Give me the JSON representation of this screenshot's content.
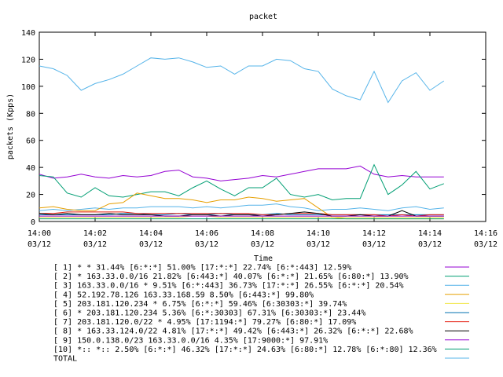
{
  "chart_data": {
    "type": "line",
    "title": "packet",
    "xlabel": "Time",
    "ylabel": "packets (Kpps)",
    "ylim": [
      0,
      140
    ],
    "xlim": [
      0,
      16
    ],
    "grid": false,
    "legend_position": "bottom",
    "y_ticks": [
      "0",
      "20",
      "40",
      "60",
      "80",
      "100",
      "120",
      "140"
    ],
    "x_ticks": [
      {
        "x": 0,
        "time": "14:00",
        "date": "03/12"
      },
      {
        "x": 2,
        "time": "14:02",
        "date": "03/12"
      },
      {
        "x": 4,
        "time": "14:04",
        "date": "03/12"
      },
      {
        "x": 6,
        "time": "14:06",
        "date": "03/12"
      },
      {
        "x": 8,
        "time": "14:08",
        "date": "03/12"
      },
      {
        "x": 10,
        "time": "14:10",
        "date": "03/12"
      },
      {
        "x": 12,
        "time": "14:12",
        "date": "03/12"
      },
      {
        "x": 14,
        "time": "14:14",
        "date": "03/12"
      },
      {
        "x": 16,
        "time": "14:16",
        "date": "03/12"
      }
    ],
    "x": [
      0,
      0.5,
      1,
      1.5,
      2,
      2.5,
      3,
      3.5,
      4,
      4.5,
      5,
      5.5,
      6,
      6.5,
      7,
      7.5,
      8,
      8.5,
      9,
      9.5,
      10,
      10.5,
      11,
      11.5,
      12,
      12.5,
      13,
      13.5,
      14,
      14.5
    ],
    "series": [
      {
        "name": "[ 1] * * 31.44%  [6:*:*] 51.00% [17:*:*] 22.74% [6:*:443] 12.59%",
        "color": "#9400d3",
        "values": [
          35,
          32,
          33,
          35,
          33,
          32,
          34,
          33,
          34,
          37,
          38,
          33,
          32,
          30,
          31,
          32,
          34,
          33,
          35,
          37,
          39,
          39,
          39,
          41,
          35,
          33,
          34,
          33,
          33,
          33
        ]
      },
      {
        "name": "[ 2] * 163.33.0.0/16 21.82%  [6:443:*] 40.07% [6:*:*] 21.65% [6:80:*] 13.90%",
        "color": "#009e73",
        "values": [
          34,
          33,
          21,
          18,
          25,
          19,
          18,
          20,
          22,
          22,
          19,
          25,
          30,
          24,
          19,
          25,
          25,
          32,
          20,
          18,
          20,
          16,
          17,
          17,
          42,
          20,
          27,
          37,
          24,
          28
        ]
      },
      {
        "name": "[ 3] 163.33.0.0/16 * 9.51%  [6:*:443] 36.73% [17:*:*] 26.55% [6:*:*] 20.54%",
        "color": "#56b4e9",
        "values": [
          8,
          9,
          8,
          9,
          10,
          9,
          10,
          10,
          11,
          11,
          11,
          10,
          11,
          10,
          11,
          12,
          12,
          13,
          11,
          10,
          8,
          9,
          9,
          10,
          9,
          8,
          10,
          11,
          9,
          10
        ]
      },
      {
        "name": "[ 4] 52.192.78.126 163.33.168.59 8.50%  [6:443:*] 99.80%",
        "color": "#e69f00",
        "values": [
          10,
          11,
          9,
          8,
          8,
          13,
          14,
          21,
          19,
          17,
          17,
          16,
          14,
          16,
          16,
          18,
          17,
          15,
          16,
          17,
          10,
          3,
          2,
          2,
          2,
          2,
          2,
          2,
          2,
          2
        ]
      },
      {
        "name": "[ 5] 203.181.120.234 * 6.75%  [6:*:*] 59.46% [6:30303:*] 39.74%",
        "color": "#f0e442",
        "values": [
          3,
          3,
          3,
          3,
          3,
          3,
          3,
          3,
          3,
          3,
          3,
          4,
          4,
          3,
          3,
          3,
          3,
          3,
          3,
          3,
          3,
          3,
          3,
          3,
          3,
          3,
          3,
          3,
          3,
          3
        ]
      },
      {
        "name": "[ 6] * 203.181.120.234 5.36%  [6:*:30303] 67.31% [6:30303:*] 23.44%",
        "color": "#0072b2",
        "values": [
          5,
          5,
          5,
          5,
          5,
          5,
          6,
          6,
          5,
          5,
          6,
          5,
          5,
          6,
          5,
          5,
          5,
          6,
          5,
          5,
          5,
          5,
          5,
          5,
          5,
          5,
          5,
          5,
          5,
          5
        ]
      },
      {
        "name": "[ 7] 203.181.120.0/22 * 4.95%  [17:1194:*] 79.27% [6:80:*] 17.09%",
        "color": "#e51e10",
        "values": [
          6,
          6,
          7,
          7,
          7,
          7,
          7,
          6,
          6,
          6,
          6,
          6,
          6,
          6,
          6,
          6,
          5,
          5,
          6,
          6,
          6,
          5,
          5,
          5,
          5,
          4,
          5,
          4,
          5,
          5
        ]
      },
      {
        "name": "[ 8] * 163.33.124.0/22 4.81%  [17:*:*] 49.42% [6:443:*] 26.32% [6:*:*] 22.68%",
        "color": "#000000",
        "values": [
          6,
          5,
          6,
          5,
          5,
          6,
          5,
          5,
          5,
          4,
          4,
          5,
          5,
          4,
          5,
          5,
          4,
          5,
          6,
          7,
          6,
          4,
          4,
          5,
          4,
          4,
          8,
          4,
          4,
          4
        ]
      },
      {
        "name": "[ 9] 150.0.138.0/23 163.33.0.0/16 4.35%  [17:9000:*] 97.91%",
        "color": "#9400d3",
        "values": [
          4,
          4,
          4,
          4,
          4,
          4,
          4,
          4,
          4,
          4,
          4,
          4,
          4,
          4,
          4,
          4,
          4,
          4,
          4,
          4,
          4,
          4,
          4,
          4,
          4,
          4,
          4,
          4,
          4,
          4
        ]
      },
      {
        "name": "[10] *:: *:: 2.50%  [6:*:*] 46.32% [17:*:*] 24.63% [6:80:*] 12.78% [6:*:80] 12.36%",
        "color": "#009e73",
        "values": [
          2,
          2,
          2,
          2,
          2,
          2,
          2,
          2,
          2,
          2,
          2,
          2,
          2,
          2,
          2,
          2,
          2,
          2,
          2,
          2,
          2,
          2,
          2,
          2,
          2,
          2,
          2,
          2,
          2,
          2
        ]
      },
      {
        "name": "TOTAL",
        "color": "#56b4e9",
        "values": [
          115,
          113,
          108,
          97,
          102,
          105,
          109,
          115,
          121,
          120,
          121,
          118,
          114,
          115,
          109,
          115,
          115,
          120,
          119,
          113,
          111,
          98,
          93,
          90,
          111,
          88,
          104,
          110,
          97,
          104
        ]
      }
    ]
  }
}
